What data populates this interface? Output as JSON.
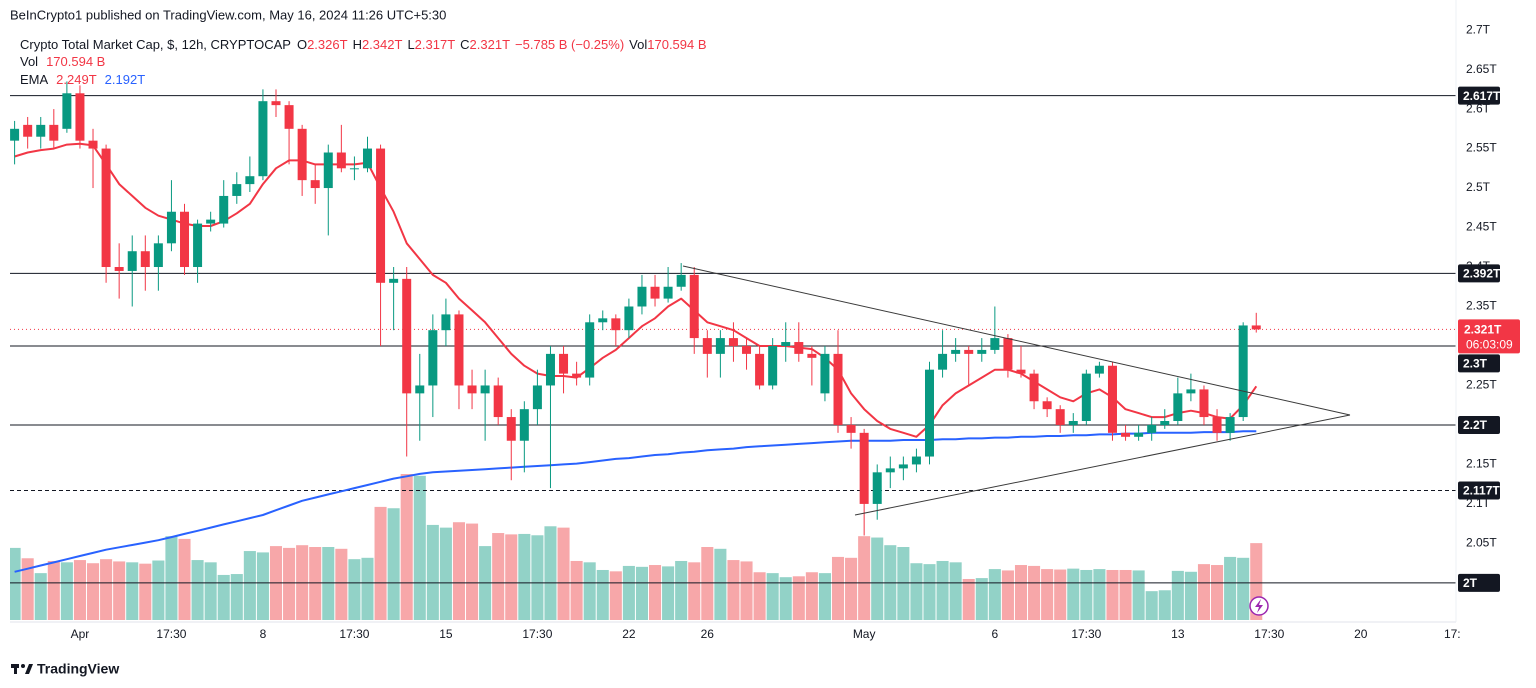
{
  "chart_data": {
    "type": "candlestick",
    "publisher": "BeInCrypto1 published on TradingView.com, May 16, 2024 11:26 UTC+5:30",
    "title": "Crypto Total Market Cap, $, 12h, CRYPTOCAP",
    "ohlc_legend": [
      {
        "label": "O",
        "value": "2.326T"
      },
      {
        "label": "H",
        "value": "2.342T"
      },
      {
        "label": "L",
        "value": "2.317T"
      },
      {
        "label": "C",
        "value": "2.321T"
      }
    ],
    "change": "−5.785 B (−0.25%)",
    "volume_legend": {
      "label": "Vol",
      "value": "170.594 B"
    },
    "ema_legend": {
      "label": "EMA",
      "values": [
        "2.249T",
        "2.192T"
      ]
    },
    "footer": "TradingView",
    "up_color": "#089981",
    "down_color": "#f23645",
    "up_volume_color": "#92d2c7",
    "down_volume_color": "#f7a7a9",
    "grid": false,
    "ylim": [
      1.953,
      2.728
    ],
    "yticks": [
      {
        "value": 2,
        "label": "2T"
      },
      {
        "value": 2.05,
        "label": "2.05T"
      },
      {
        "value": 2.1,
        "label": "2.1T"
      },
      {
        "value": 2.15,
        "label": "2.15T"
      },
      {
        "value": 2.2,
        "label": "2.2T"
      },
      {
        "value": 2.25,
        "label": "2.25T"
      },
      {
        "value": 2.3,
        "label": "2.3T"
      },
      {
        "value": 2.35,
        "label": "2.35T"
      },
      {
        "value": 2.4,
        "label": "2.4T"
      },
      {
        "value": 2.45,
        "label": "2.45T"
      },
      {
        "value": 2.5,
        "label": "2.5T"
      },
      {
        "value": 2.55,
        "label": "2.55T"
      },
      {
        "value": 2.6,
        "label": "2.6T"
      },
      {
        "value": 2.65,
        "label": "2.65T"
      },
      {
        "value": 2.7,
        "label": "2.7T"
      }
    ],
    "levels": [
      {
        "value": 2.617,
        "label": "2.617T"
      },
      {
        "value": 2.392,
        "label": "2.392T"
      },
      {
        "value": 2.3,
        "label": "2.3T"
      },
      {
        "value": 2.2,
        "label": "2.2T"
      },
      {
        "value": 2.117,
        "label": "2.117T",
        "style": "dashed"
      },
      {
        "value": 2,
        "label": "2T"
      }
    ],
    "last_price": {
      "value": 2.321,
      "label": "2.321T",
      "countdown": "06:03:09"
    },
    "categories": [
      null,
      null,
      null,
      null,
      null,
      "Apr",
      null,
      null,
      null,
      null,
      null,
      null,
      "17:30",
      null,
      null,
      null,
      null,
      null,
      null,
      "8",
      null,
      null,
      null,
      null,
      null,
      null,
      "17:30",
      null,
      null,
      null,
      null,
      null,
      null,
      "15",
      null,
      null,
      null,
      null,
      null,
      null,
      "17:30",
      null,
      null,
      null,
      null,
      null,
      null,
      "22",
      null,
      null,
      null,
      null,
      null,
      "26",
      null,
      null,
      null,
      null,
      null,
      null,
      null,
      null,
      null,
      null,
      null,
      "May",
      null,
      null,
      null,
      null,
      null,
      null,
      null,
      null,
      null,
      "6",
      null,
      null,
      null,
      null,
      null,
      null,
      "17:30",
      null,
      null,
      null,
      null,
      null,
      null,
      "13",
      null,
      null,
      null,
      null,
      null,
      null,
      "17:30",
      null,
      null,
      null,
      null,
      null,
      null,
      "20",
      null,
      null,
      null,
      null,
      null,
      null,
      "17:"
    ],
    "candles": {
      "open": [
        2.56,
        2.58,
        2.565,
        2.58,
        2.575,
        2.62,
        2.56,
        2.55,
        2.4,
        2.395,
        2.42,
        2.4,
        2.43,
        2.47,
        2.4,
        2.455,
        2.455,
        2.49,
        2.505,
        2.515,
        2.61,
        2.605,
        2.575,
        2.51,
        2.5,
        2.545,
        2.525,
        2.525,
        2.55,
        2.38,
        2.385,
        2.24,
        2.25,
        2.32,
        2.34,
        2.25,
        2.24,
        2.25,
        2.21,
        2.18,
        2.22,
        2.25,
        2.29,
        2.265,
        2.26,
        2.33,
        2.335,
        2.32,
        2.35,
        2.375,
        2.36,
        2.375,
        2.39,
        2.31,
        2.29,
        2.31,
        2.3,
        2.29,
        2.25,
        2.3,
        2.305,
        2.29,
        2.24,
        2.29,
        2.2,
        2.19,
        2.1,
        2.14,
        2.145,
        2.15,
        2.16,
        2.27,
        2.29,
        2.295,
        2.29,
        2.295,
        2.31,
        2.27,
        2.265,
        2.23,
        2.22,
        2.2,
        2.205,
        2.265,
        2.275,
        2.19,
        2.185,
        2.19,
        2.2,
        2.205,
        2.24,
        2.245,
        2.21,
        2.19,
        2.21,
        2.326,
        null,
        null,
        null,
        null,
        null,
        null,
        null,
        null,
        null,
        null,
        null,
        null,
        null,
        null,
        null
      ],
      "high": [
        2.585,
        2.59,
        2.59,
        2.6,
        2.635,
        2.63,
        2.575,
        2.555,
        2.43,
        2.44,
        2.44,
        2.44,
        2.51,
        2.48,
        2.46,
        2.47,
        2.51,
        2.52,
        2.54,
        2.625,
        2.625,
        2.61,
        2.58,
        2.53,
        2.555,
        2.58,
        2.54,
        2.565,
        2.555,
        2.4,
        2.4,
        2.29,
        2.34,
        2.36,
        2.345,
        2.27,
        2.27,
        2.26,
        2.22,
        2.23,
        2.27,
        2.3,
        2.3,
        2.28,
        2.34,
        2.345,
        2.34,
        2.36,
        2.39,
        2.39,
        2.4,
        2.405,
        2.4,
        2.32,
        2.32,
        2.33,
        2.31,
        2.3,
        2.31,
        2.33,
        2.33,
        2.3,
        2.3,
        2.32,
        2.21,
        2.195,
        2.15,
        2.16,
        2.16,
        2.17,
        2.28,
        2.32,
        2.31,
        2.3,
        2.31,
        2.35,
        2.315,
        2.3,
        2.27,
        2.235,
        2.225,
        2.215,
        2.27,
        2.28,
        2.28,
        2.2,
        2.2,
        2.21,
        2.22,
        2.26,
        2.265,
        2.25,
        2.22,
        2.215,
        2.33,
        2.342,
        null,
        null,
        null,
        null,
        null,
        null,
        null,
        null,
        null,
        null,
        null,
        null,
        null,
        null,
        null
      ],
      "low": [
        2.53,
        2.55,
        2.55,
        2.55,
        2.57,
        2.55,
        2.5,
        2.38,
        2.36,
        2.35,
        2.37,
        2.37,
        2.42,
        2.39,
        2.38,
        2.445,
        2.45,
        2.48,
        2.495,
        2.51,
        2.59,
        2.53,
        2.49,
        2.48,
        2.44,
        2.52,
        2.51,
        2.52,
        2.3,
        2.32,
        2.16,
        2.18,
        2.21,
        2.3,
        2.22,
        2.22,
        2.18,
        2.2,
        2.13,
        2.14,
        2.2,
        2.12,
        2.24,
        2.25,
        2.25,
        2.32,
        2.3,
        2.31,
        2.34,
        2.35,
        2.355,
        2.37,
        2.29,
        2.26,
        2.26,
        2.28,
        2.27,
        2.245,
        2.245,
        2.28,
        2.28,
        2.25,
        2.23,
        2.19,
        2.17,
        2.06,
        2.08,
        2.12,
        2.13,
        2.14,
        2.15,
        2.26,
        2.28,
        2.25,
        2.28,
        2.29,
        2.26,
        2.26,
        2.22,
        2.21,
        2.19,
        2.19,
        2.2,
        2.26,
        2.18,
        2.18,
        2.18,
        2.18,
        2.195,
        2.2,
        2.23,
        2.2,
        2.18,
        2.18,
        2.205,
        2.317,
        null,
        null,
        null,
        null,
        null,
        null,
        null,
        null,
        null,
        null,
        null,
        null,
        null,
        null,
        null
      ],
      "close": [
        2.575,
        2.565,
        2.58,
        2.56,
        2.62,
        2.56,
        2.55,
        2.4,
        2.395,
        2.42,
        2.4,
        2.43,
        2.47,
        2.4,
        2.455,
        2.46,
        2.49,
        2.505,
        2.515,
        2.61,
        2.605,
        2.575,
        2.51,
        2.5,
        2.545,
        2.525,
        2.525,
        2.55,
        2.38,
        2.385,
        2.24,
        2.25,
        2.32,
        2.34,
        2.25,
        2.24,
        2.25,
        2.21,
        2.18,
        2.22,
        2.25,
        2.29,
        2.265,
        2.26,
        2.33,
        2.335,
        2.32,
        2.35,
        2.375,
        2.36,
        2.375,
        2.39,
        2.31,
        2.29,
        2.31,
        2.3,
        2.29,
        2.25,
        2.3,
        2.305,
        2.29,
        2.285,
        2.29,
        2.2,
        2.19,
        2.1,
        2.14,
        2.145,
        2.15,
        2.16,
        2.27,
        2.29,
        2.295,
        2.29,
        2.295,
        2.31,
        2.27,
        2.265,
        2.23,
        2.22,
        2.2,
        2.205,
        2.265,
        2.275,
        2.19,
        2.185,
        2.19,
        2.2,
        2.205,
        2.24,
        2.245,
        2.21,
        2.19,
        2.21,
        2.326,
        2.321,
        null,
        null,
        null,
        null,
        null,
        null,
        null,
        null,
        null,
        null,
        null,
        null,
        null,
        null,
        null
      ]
    },
    "volume": [
      160,
      137,
      104,
      131,
      128,
      133,
      126,
      135,
      130,
      128,
      125,
      132,
      186,
      180,
      133,
      128,
      100,
      102,
      153,
      150,
      164,
      160,
      166,
      162,
      162,
      158,
      135,
      138,
      251,
      248,
      324,
      320,
      211,
      205,
      217,
      214,
      164,
      193,
      190,
      191,
      188,
      208,
      205,
      131,
      128,
      111,
      108,
      120,
      118,
      122,
      119,
      131,
      128,
      162,
      158,
      133,
      130,
      106,
      104,
      95,
      97,
      106,
      104,
      140,
      138,
      186,
      183,
      166,
      162,
      126,
      124,
      131,
      128,
      91,
      93,
      113,
      110,
      122,
      120,
      113,
      112,
      114,
      111,
      113,
      111,
      111,
      110,
      64,
      66,
      109,
      107,
      124,
      122,
      140,
      138,
      170.594,
      null,
      null,
      null,
      null,
      null,
      null,
      null,
      null,
      null,
      null,
      null,
      null,
      null,
      null,
      null
    ],
    "ema": [
      {
        "color": "#f23645",
        "values": [
          2.54,
          2.545,
          2.548,
          2.55,
          2.555,
          2.556,
          2.554,
          2.53,
          2.505,
          2.49,
          2.475,
          2.465,
          2.46,
          2.455,
          2.452,
          2.452,
          2.458,
          2.468,
          2.48,
          2.505,
          2.525,
          2.535,
          2.535,
          2.53,
          2.53,
          2.53,
          2.53,
          2.532,
          2.5,
          2.47,
          2.43,
          2.41,
          2.39,
          2.38,
          2.36,
          2.345,
          2.33,
          2.31,
          2.29,
          2.275,
          2.265,
          2.262,
          2.262,
          2.26,
          2.272,
          2.285,
          2.295,
          2.31,
          2.325,
          2.335,
          2.35,
          2.36,
          2.345,
          2.33,
          2.325,
          2.32,
          2.31,
          2.3,
          2.3,
          2.3,
          2.298,
          2.296,
          2.285,
          2.27,
          2.24,
          2.22,
          2.205,
          2.195,
          2.19,
          2.185,
          2.2,
          2.225,
          2.24,
          2.25,
          2.26,
          2.27,
          2.27,
          2.265,
          2.255,
          2.245,
          2.235,
          2.23,
          2.24,
          2.245,
          2.235,
          2.22,
          2.215,
          2.21,
          2.21,
          2.215,
          2.218,
          2.215,
          2.21,
          2.208,
          2.225,
          2.249,
          null,
          null,
          null,
          null,
          null,
          null,
          null,
          null,
          null,
          null,
          null,
          null,
          null,
          null,
          null
        ]
      },
      {
        "color": "#2962ff",
        "values": [
          2.014,
          2.018,
          2.022,
          2.026,
          2.03,
          2.034,
          2.038,
          2.042,
          2.045,
          2.048,
          2.051,
          2.054,
          2.058,
          2.062,
          2.066,
          2.07,
          2.074,
          2.078,
          2.082,
          2.086,
          2.092,
          2.098,
          2.104,
          2.108,
          2.112,
          2.116,
          2.12,
          2.124,
          2.128,
          2.132,
          2.135,
          2.138,
          2.14,
          2.141,
          2.142,
          2.143,
          2.144,
          2.145,
          2.146,
          2.147,
          2.148,
          2.149,
          2.15,
          2.151,
          2.153,
          2.155,
          2.157,
          2.158,
          2.16,
          2.162,
          2.163,
          2.165,
          2.166,
          2.168,
          2.169,
          2.17,
          2.172,
          2.173,
          2.174,
          2.175,
          2.176,
          2.177,
          2.178,
          2.179,
          2.18,
          2.18,
          2.18,
          2.18,
          2.181,
          2.181,
          2.181,
          2.182,
          2.182,
          2.183,
          2.183,
          2.184,
          2.184,
          2.185,
          2.185,
          2.186,
          2.186,
          2.187,
          2.187,
          2.188,
          2.188,
          2.189,
          2.189,
          2.19,
          2.19,
          2.19,
          2.19,
          2.191,
          2.191,
          2.191,
          2.192,
          2.192,
          null,
          null,
          null,
          null,
          null,
          null,
          null,
          null,
          null,
          null,
          null,
          null,
          null,
          null,
          null
        ]
      }
    ]
  }
}
